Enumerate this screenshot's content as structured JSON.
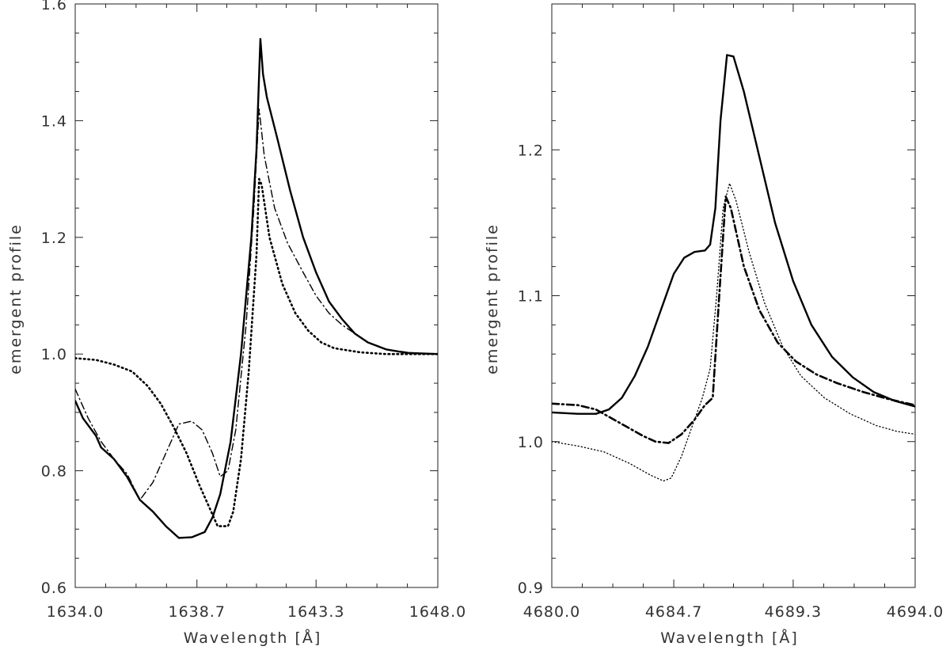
{
  "chart_data": [
    {
      "type": "line",
      "title": "",
      "xlabel": "Wavelength [Å]",
      "ylabel": "emergent profile",
      "xlim": [
        1634.0,
        1648.0
      ],
      "ylim": [
        0.6,
        1.6
      ],
      "xticks": [
        "1634.0",
        "1638.7",
        "1643.3",
        "1648.0"
      ],
      "xtick_values": [
        1634.0,
        1638.7,
        1643.3,
        1648.0
      ],
      "yticks": [
        "0.6",
        "0.8",
        "1.0",
        "1.2",
        "1.4",
        "1.6"
      ],
      "ytick_values": [
        0.6,
        0.8,
        1.0,
        1.2,
        1.4,
        1.6
      ],
      "y_minor_step": 0.05,
      "x_minor_count": 3,
      "grid": false,
      "series": [
        {
          "style": "solid",
          "points": [
            [
              1634.0,
              0.92
            ],
            [
              1634.3,
              0.89
            ],
            [
              1634.8,
              0.86
            ],
            [
              1635.0,
              0.84
            ],
            [
              1635.5,
              0.82
            ],
            [
              1636.0,
              0.79
            ],
            [
              1636.5,
              0.75
            ],
            [
              1637.0,
              0.73
            ],
            [
              1637.5,
              0.705
            ],
            [
              1638.0,
              0.685
            ],
            [
              1638.5,
              0.686
            ],
            [
              1639.0,
              0.695
            ],
            [
              1639.3,
              0.72
            ],
            [
              1639.6,
              0.76
            ],
            [
              1640.0,
              0.85
            ],
            [
              1640.4,
              1.0
            ],
            [
              1640.8,
              1.2
            ],
            [
              1641.0,
              1.35
            ],
            [
              1641.15,
              1.54
            ],
            [
              1641.25,
              1.48
            ],
            [
              1641.4,
              1.44
            ],
            [
              1641.8,
              1.37
            ],
            [
              1642.3,
              1.28
            ],
            [
              1642.8,
              1.2
            ],
            [
              1643.3,
              1.14
            ],
            [
              1643.8,
              1.09
            ],
            [
              1644.3,
              1.06
            ],
            [
              1644.8,
              1.035
            ],
            [
              1645.3,
              1.02
            ],
            [
              1646.0,
              1.008
            ],
            [
              1646.8,
              1.002
            ],
            [
              1648.0,
              1.0
            ]
          ]
        },
        {
          "style": "dotted",
          "points": [
            [
              1634.0,
              0.993
            ],
            [
              1634.8,
              0.99
            ],
            [
              1635.5,
              0.982
            ],
            [
              1636.2,
              0.97
            ],
            [
              1636.8,
              0.945
            ],
            [
              1637.3,
              0.915
            ],
            [
              1637.8,
              0.875
            ],
            [
              1638.3,
              0.83
            ],
            [
              1638.8,
              0.775
            ],
            [
              1639.2,
              0.735
            ],
            [
              1639.5,
              0.705
            ],
            [
              1639.9,
              0.705
            ],
            [
              1640.1,
              0.73
            ],
            [
              1640.4,
              0.82
            ],
            [
              1640.7,
              0.97
            ],
            [
              1641.0,
              1.17
            ],
            [
              1641.1,
              1.3
            ],
            [
              1641.2,
              1.29
            ],
            [
              1641.5,
              1.2
            ],
            [
              1642.0,
              1.12
            ],
            [
              1642.5,
              1.07
            ],
            [
              1643.0,
              1.04
            ],
            [
              1643.5,
              1.02
            ],
            [
              1644.0,
              1.01
            ],
            [
              1645.0,
              1.003
            ],
            [
              1646.0,
              1.0
            ],
            [
              1648.0,
              1.0
            ]
          ]
        },
        {
          "style": "dash-dot",
          "points": [
            [
              1634.0,
              0.94
            ],
            [
              1634.5,
              0.89
            ],
            [
              1635.0,
              0.85
            ],
            [
              1635.5,
              0.82
            ],
            [
              1636.0,
              0.795
            ],
            [
              1636.5,
              0.75
            ],
            [
              1637.0,
              0.78
            ],
            [
              1637.5,
              0.83
            ],
            [
              1638.0,
              0.88
            ],
            [
              1638.5,
              0.885
            ],
            [
              1638.9,
              0.87
            ],
            [
              1639.3,
              0.83
            ],
            [
              1639.6,
              0.79
            ],
            [
              1639.9,
              0.8
            ],
            [
              1640.2,
              0.87
            ],
            [
              1640.6,
              1.05
            ],
            [
              1640.9,
              1.25
            ],
            [
              1641.1,
              1.42
            ],
            [
              1641.3,
              1.34
            ],
            [
              1641.7,
              1.25
            ],
            [
              1642.2,
              1.19
            ],
            [
              1642.8,
              1.14
            ],
            [
              1643.3,
              1.1
            ],
            [
              1643.8,
              1.07
            ],
            [
              1644.3,
              1.05
            ],
            [
              1644.8,
              1.035
            ],
            [
              1645.3,
              1.02
            ],
            [
              1646.0,
              1.008
            ],
            [
              1647.0,
              1.002
            ],
            [
              1648.0,
              1.0
            ]
          ]
        }
      ]
    },
    {
      "type": "line",
      "title": "",
      "xlabel": "Wavelength [Å]",
      "ylabel": "emergent profile",
      "xlim": [
        4680.0,
        4694.0
      ],
      "ylim": [
        0.9,
        1.3
      ],
      "xticks": [
        "4680.0",
        "4684.7",
        "4689.3",
        "4694.0"
      ],
      "xtick_values": [
        4680.0,
        4684.7,
        4689.3,
        4694.0
      ],
      "yticks": [
        "0.9",
        "1.0",
        "1.1",
        "1.2"
      ],
      "ytick_values": [
        0.9,
        1.0,
        1.1,
        1.2
      ],
      "y_minor_step": 0.02,
      "x_minor_count": 3,
      "grid": false,
      "series": [
        {
          "style": "solid",
          "points": [
            [
              4680.0,
              1.02
            ],
            [
              4681.0,
              1.019
            ],
            [
              4681.7,
              1.019
            ],
            [
              4682.2,
              1.022
            ],
            [
              4682.7,
              1.03
            ],
            [
              4683.2,
              1.045
            ],
            [
              4683.7,
              1.065
            ],
            [
              4684.2,
              1.09
            ],
            [
              4684.7,
              1.115
            ],
            [
              4685.1,
              1.126
            ],
            [
              4685.5,
              1.13
            ],
            [
              4685.9,
              1.131
            ],
            [
              4686.1,
              1.135
            ],
            [
              4686.3,
              1.16
            ],
            [
              4686.5,
              1.22
            ],
            [
              4686.75,
              1.265
            ],
            [
              4687.0,
              1.264
            ],
            [
              4687.4,
              1.24
            ],
            [
              4688.0,
              1.195
            ],
            [
              4688.6,
              1.15
            ],
            [
              4689.3,
              1.11
            ],
            [
              4690.0,
              1.08
            ],
            [
              4690.8,
              1.058
            ],
            [
              4691.6,
              1.044
            ],
            [
              4692.4,
              1.034
            ],
            [
              4693.2,
              1.028
            ],
            [
              4694.0,
              1.024
            ]
          ]
        },
        {
          "style": "dotted",
          "points": [
            [
              4680.0,
              1.0
            ],
            [
              4681.0,
              0.997
            ],
            [
              4682.0,
              0.993
            ],
            [
              4683.0,
              0.985
            ],
            [
              4683.8,
              0.977
            ],
            [
              4684.3,
              0.973
            ],
            [
              4684.6,
              0.975
            ],
            [
              4685.0,
              0.99
            ],
            [
              4685.4,
              1.01
            ],
            [
              4685.8,
              1.03
            ],
            [
              4686.1,
              1.05
            ],
            [
              4686.35,
              1.1
            ],
            [
              4686.6,
              1.16
            ],
            [
              4686.85,
              1.177
            ],
            [
              4687.1,
              1.165
            ],
            [
              4687.6,
              1.13
            ],
            [
              4688.2,
              1.095
            ],
            [
              4688.9,
              1.065
            ],
            [
              4689.6,
              1.045
            ],
            [
              4690.5,
              1.03
            ],
            [
              4691.5,
              1.019
            ],
            [
              4692.5,
              1.011
            ],
            [
              4693.3,
              1.007
            ],
            [
              4694.0,
              1.005
            ]
          ]
        },
        {
          "style": "dash-dot",
          "points": [
            [
              4680.0,
              1.026
            ],
            [
              4681.0,
              1.025
            ],
            [
              4681.7,
              1.022
            ],
            [
              4682.3,
              1.016
            ],
            [
              4682.9,
              1.01
            ],
            [
              4683.5,
              1.004
            ],
            [
              4684.0,
              1.0
            ],
            [
              4684.5,
              0.999
            ],
            [
              4685.0,
              1.005
            ],
            [
              4685.5,
              1.015
            ],
            [
              4685.9,
              1.025
            ],
            [
              4686.2,
              1.03
            ],
            [
              4686.45,
              1.1
            ],
            [
              4686.7,
              1.168
            ],
            [
              4686.9,
              1.16
            ],
            [
              4687.4,
              1.12
            ],
            [
              4688.0,
              1.09
            ],
            [
              4688.7,
              1.068
            ],
            [
              4689.4,
              1.055
            ],
            [
              4690.2,
              1.046
            ],
            [
              4691.0,
              1.04
            ],
            [
              4692.0,
              1.034
            ],
            [
              4693.0,
              1.029
            ],
            [
              4694.0,
              1.025
            ]
          ]
        }
      ]
    }
  ]
}
